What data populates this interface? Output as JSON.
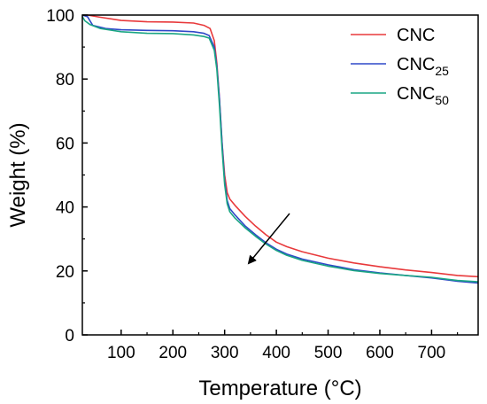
{
  "chart_data": {
    "type": "line",
    "title": "",
    "xlabel": "Temperature (°C)",
    "ylabel": "Weight (%)",
    "xlim": [
      25,
      790
    ],
    "ylim": [
      0,
      100
    ],
    "x_ticks": [
      100,
      200,
      300,
      400,
      500,
      600,
      700
    ],
    "y_ticks": [
      0,
      20,
      40,
      60,
      80,
      100
    ],
    "grid": false,
    "legend_position": "top-right",
    "annotation": "arrow pointing down-left indicating decreasing residual weight",
    "series": [
      {
        "name": "CNC",
        "name_base": "CNC",
        "name_sub": "",
        "color": "#e8393b",
        "points": [
          [
            35,
            100
          ],
          [
            60,
            99.3
          ],
          [
            100,
            98.3
          ],
          [
            150,
            97.9
          ],
          [
            200,
            97.8
          ],
          [
            240,
            97.5
          ],
          [
            260,
            96.8
          ],
          [
            272,
            95.8
          ],
          [
            280,
            92
          ],
          [
            285,
            85
          ],
          [
            290,
            74
          ],
          [
            295,
            60
          ],
          [
            300,
            50
          ],
          [
            305,
            44.5
          ],
          [
            310,
            42.5
          ],
          [
            320,
            40.5
          ],
          [
            340,
            37
          ],
          [
            360,
            34
          ],
          [
            380,
            31.3
          ],
          [
            400,
            29
          ],
          [
            420,
            27.6
          ],
          [
            450,
            26
          ],
          [
            500,
            24
          ],
          [
            550,
            22.5
          ],
          [
            600,
            21.3
          ],
          [
            650,
            20.3
          ],
          [
            700,
            19.5
          ],
          [
            750,
            18.6
          ],
          [
            790,
            18.2
          ]
        ]
      },
      {
        "name": "CNC25",
        "name_base": "CNC",
        "name_sub": "25",
        "color": "#2f48c8",
        "points": [
          [
            25,
            100
          ],
          [
            35,
            99.5
          ],
          [
            45,
            96.8
          ],
          [
            70,
            95.8
          ],
          [
            100,
            95.4
          ],
          [
            150,
            95.2
          ],
          [
            200,
            95.1
          ],
          [
            240,
            94.8
          ],
          [
            260,
            94.3
          ],
          [
            270,
            93.6
          ],
          [
            280,
            90
          ],
          [
            285,
            84
          ],
          [
            290,
            74
          ],
          [
            295,
            60
          ],
          [
            300,
            48
          ],
          [
            305,
            42
          ],
          [
            310,
            39.5
          ],
          [
            320,
            37.5
          ],
          [
            340,
            34
          ],
          [
            360,
            31.3
          ],
          [
            380,
            28.8
          ],
          [
            400,
            26.8
          ],
          [
            420,
            25.3
          ],
          [
            450,
            23.7
          ],
          [
            500,
            21.9
          ],
          [
            550,
            20.4
          ],
          [
            600,
            19.4
          ],
          [
            650,
            18.6
          ],
          [
            700,
            17.8
          ],
          [
            750,
            16.8
          ],
          [
            790,
            16.2
          ]
        ]
      },
      {
        "name": "CNC50",
        "name_base": "CNC",
        "name_sub": "50",
        "color": "#1aa583",
        "points": [
          [
            25,
            99.5
          ],
          [
            30,
            98.2
          ],
          [
            40,
            97
          ],
          [
            60,
            95.8
          ],
          [
            100,
            94.8
          ],
          [
            150,
            94.3
          ],
          [
            200,
            94.2
          ],
          [
            240,
            93.8
          ],
          [
            260,
            93.3
          ],
          [
            270,
            92.8
          ],
          [
            280,
            89
          ],
          [
            285,
            83
          ],
          [
            290,
            72
          ],
          [
            295,
            58
          ],
          [
            300,
            47
          ],
          [
            305,
            41
          ],
          [
            310,
            38.5
          ],
          [
            320,
            36.5
          ],
          [
            340,
            33.4
          ],
          [
            360,
            30.8
          ],
          [
            380,
            28.4
          ],
          [
            400,
            26.4
          ],
          [
            420,
            24.9
          ],
          [
            450,
            23.3
          ],
          [
            500,
            21.5
          ],
          [
            550,
            20.1
          ],
          [
            600,
            19.2
          ],
          [
            650,
            18.6
          ],
          [
            700,
            18
          ],
          [
            750,
            17
          ],
          [
            790,
            16.6
          ]
        ]
      }
    ]
  }
}
